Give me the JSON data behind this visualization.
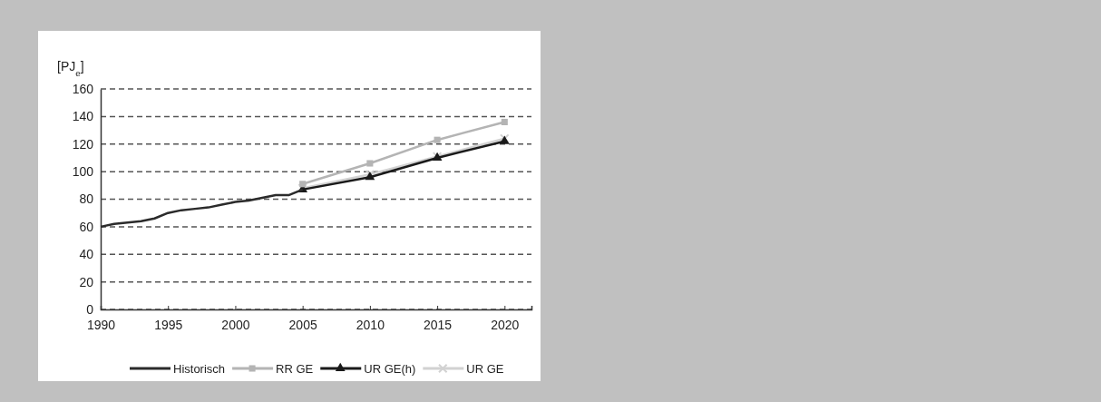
{
  "chart_data": {
    "type": "line",
    "ylabel": "[PJ$_{e}$]",
    "xlim": [
      1990,
      2022
    ],
    "xticks": [
      1990,
      1995,
      2000,
      2005,
      2010,
      2015,
      2020
    ],
    "ylim": [
      0,
      160
    ],
    "yticks": [
      0,
      20,
      40,
      60,
      80,
      100,
      120,
      140,
      160
    ],
    "grid": "y",
    "legend": "bottom",
    "series": [
      {
        "name": "Historisch",
        "color": "#2b2b2b",
        "marker": "none",
        "x": [
          1990,
          1991,
          1992,
          1993,
          1994,
          1995,
          1996,
          1997,
          1998,
          1999,
          2000,
          2001,
          2002,
          2003,
          2004,
          2005
        ],
        "values": [
          60,
          62,
          63,
          64,
          66,
          70,
          72,
          73,
          74,
          76,
          78,
          79,
          81,
          83,
          83,
          87
        ]
      },
      {
        "name": "RR GE",
        "color": "#b4b4b4",
        "marker": "square",
        "x": [
          2005,
          2010,
          2015,
          2020
        ],
        "values": [
          91,
          106,
          123,
          136
        ]
      },
      {
        "name": "UR GE(h)",
        "color": "#1a1a1a",
        "marker": "triangle",
        "x": [
          2005,
          2010,
          2015,
          2020
        ],
        "values": [
          87,
          96,
          110,
          122
        ]
      },
      {
        "name": "UR GE",
        "color": "#d2d2d2",
        "marker": "cross",
        "x": [
          2005,
          2010,
          2015,
          2020
        ],
        "values": [
          88,
          98,
          111,
          124
        ]
      }
    ]
  }
}
